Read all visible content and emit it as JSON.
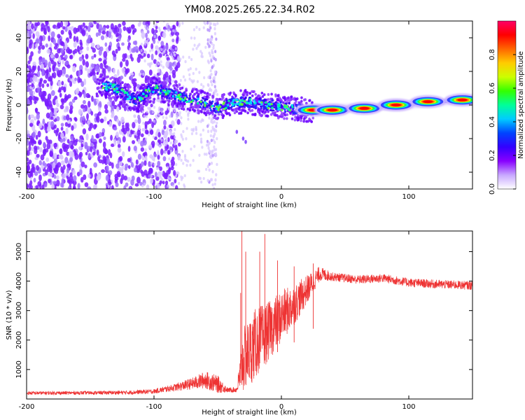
{
  "chart_data": [
    {
      "type": "heatmap",
      "title": "YM08.2025.265.22.34.R02",
      "xlabel": "Height of straight line (km)",
      "ylabel": "Frequency (Hz)",
      "xlim": [
        -200,
        150
      ],
      "ylim": [
        -50,
        50
      ],
      "xticks": [
        -200,
        -100,
        0,
        100
      ],
      "yticks": [
        -40,
        -20,
        0,
        20,
        40
      ],
      "colorbar": {
        "label": "Normalized spectral amplitude",
        "range": [
          0,
          1
        ],
        "ticks": [
          0.0,
          0.2,
          0.4,
          0.6,
          0.8
        ],
        "colormap": [
          "#ffffff",
          "#c8a8ff",
          "#8800ff",
          "#3300ff",
          "#0044ff",
          "#00ccff",
          "#00ff99",
          "#33ff00",
          "#ccff00",
          "#ffcc00",
          "#ff6600",
          "#ff0000",
          "#ff0066"
        ]
      },
      "ridge": [
        {
          "x": -142,
          "y": 12
        },
        {
          "x": -130,
          "y": 10
        },
        {
          "x": -120,
          "y": 5
        },
        {
          "x": -112,
          "y": 3
        },
        {
          "x": -105,
          "y": 8
        },
        {
          "x": -98,
          "y": 10
        },
        {
          "x": -90,
          "y": 7
        },
        {
          "x": -80,
          "y": 5
        },
        {
          "x": -70,
          "y": 3
        },
        {
          "x": -60,
          "y": 1
        },
        {
          "x": -50,
          "y": -2
        },
        {
          "x": -40,
          "y": 1
        },
        {
          "x": -30,
          "y": 2
        },
        {
          "x": -20,
          "y": 1
        },
        {
          "x": -10,
          "y": 0
        },
        {
          "x": 0,
          "y": -1
        },
        {
          "x": 10,
          "y": -2
        },
        {
          "x": 20,
          "y": -3
        },
        {
          "x": 35,
          "y": -3
        },
        {
          "x": 50,
          "y": -2
        },
        {
          "x": 65,
          "y": -2
        },
        {
          "x": 80,
          "y": -1
        },
        {
          "x": 95,
          "y": 0
        },
        {
          "x": 110,
          "y": 1
        },
        {
          "x": 125,
          "y": 2
        },
        {
          "x": 140,
          "y": 3
        },
        {
          "x": 150,
          "y": 3
        }
      ],
      "peaks": [
        {
          "x": 25,
          "y": -3
        },
        {
          "x": 40,
          "y": -3
        },
        {
          "x": 65,
          "y": -2
        },
        {
          "x": 90,
          "y": 0
        },
        {
          "x": 115,
          "y": 2
        },
        {
          "x": 142,
          "y": 3
        }
      ]
    },
    {
      "type": "line",
      "title": "",
      "xlabel": "Height of straight line (km)",
      "ylabel": "SNR (10 * v/v)",
      "xlim": [
        -200,
        150
      ],
      "ylim": [
        0,
        5700
      ],
      "xticks": [
        -200,
        -100,
        0,
        100
      ],
      "yticks": [
        1000,
        2000,
        3000,
        4000,
        5000
      ],
      "color": "#ee3333",
      "envelope": [
        {
          "x": -200,
          "mean": 200,
          "noise": 60
        },
        {
          "x": -150,
          "mean": 210,
          "noise": 60
        },
        {
          "x": -120,
          "mean": 220,
          "noise": 70
        },
        {
          "x": -100,
          "mean": 260,
          "noise": 80
        },
        {
          "x": -85,
          "mean": 380,
          "noise": 120
        },
        {
          "x": -70,
          "mean": 520,
          "noise": 200
        },
        {
          "x": -60,
          "mean": 650,
          "noise": 300
        },
        {
          "x": -50,
          "mean": 500,
          "noise": 300
        },
        {
          "x": -42,
          "mean": 300,
          "noise": 80
        },
        {
          "x": -35,
          "mean": 320,
          "noise": 100
        },
        {
          "x": -30,
          "mean": 1300,
          "noise": 1100
        },
        {
          "x": -20,
          "mean": 1900,
          "noise": 1200
        },
        {
          "x": -10,
          "mean": 2300,
          "noise": 1000
        },
        {
          "x": 0,
          "mean": 2800,
          "noise": 900
        },
        {
          "x": 10,
          "mean": 3200,
          "noise": 700
        },
        {
          "x": 20,
          "mean": 3700,
          "noise": 500
        },
        {
          "x": 30,
          "mean": 4250,
          "noise": 250
        },
        {
          "x": 40,
          "mean": 4150,
          "noise": 150
        },
        {
          "x": 60,
          "mean": 4050,
          "noise": 150
        },
        {
          "x": 80,
          "mean": 4100,
          "noise": 150
        },
        {
          "x": 100,
          "mean": 3950,
          "noise": 150
        },
        {
          "x": 120,
          "mean": 3900,
          "noise": 150
        },
        {
          "x": 150,
          "mean": 3850,
          "noise": 150
        }
      ],
      "spikes": [
        {
          "x": -31,
          "y": 5700
        },
        {
          "x": -28,
          "y": 5000
        },
        {
          "x": -13,
          "y": 5600
        },
        {
          "x": -17,
          "y": 5000
        },
        {
          "x": -3,
          "y": 4700
        },
        {
          "x": 10,
          "y": 4500
        },
        {
          "x": -32,
          "y": 3600
        },
        {
          "x": 25,
          "y": 4600
        }
      ]
    }
  ]
}
